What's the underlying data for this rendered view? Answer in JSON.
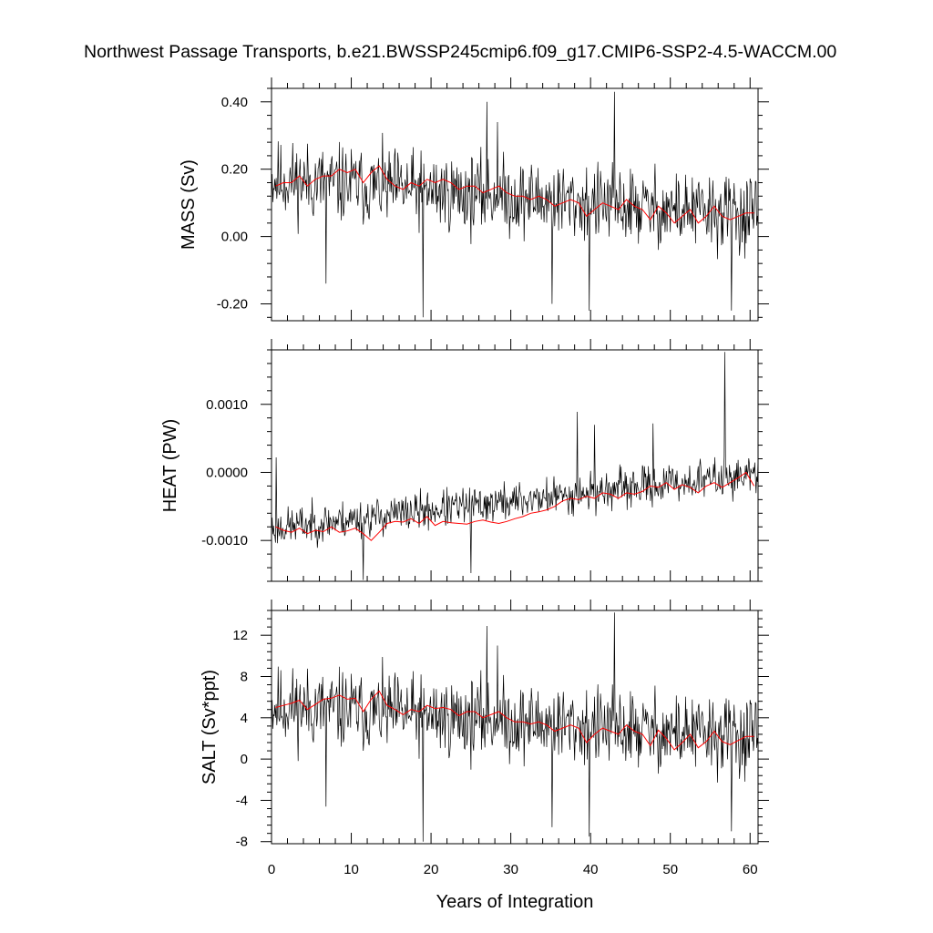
{
  "title": "Northwest Passage Transports, b.e21.BWSSP245cmip6.f09_g17.CMIP6-SSP2-4.5-WACCM.00",
  "chart_data": [
    {
      "type": "line",
      "ylabel": "MASS (Sv)",
      "xlabel": "",
      "xlim": [
        0,
        61
      ],
      "ylim": [
        -0.25,
        0.44
      ],
      "yticks": [
        0.4,
        0.2,
        0.0,
        -0.2
      ],
      "ytick_labels": [
        "0.40",
        "0.20",
        "0.00",
        "-0.20"
      ],
      "monthly": {
        "color": "#000000",
        "mean_start": 0.17,
        "mean_end": 0.06,
        "spread": 0.09,
        "seed": 11,
        "spikes": [
          [
            19.0,
            -0.24
          ],
          [
            43.0,
            0.43
          ],
          [
            27.0,
            0.4
          ],
          [
            28.3,
            0.34
          ],
          [
            39.8,
            -0.22
          ],
          [
            57.7,
            -0.22
          ],
          [
            35.2,
            -0.2
          ],
          [
            6.8,
            -0.14
          ]
        ]
      },
      "annual_mean": {
        "color": "#ff0000",
        "x": [
          0.5,
          1.5,
          2.5,
          3.5,
          4.5,
          5.5,
          6.5,
          7.5,
          8.5,
          9.5,
          10.5,
          11.5,
          12.5,
          13.5,
          14.5,
          15.5,
          16.5,
          17.5,
          18.5,
          19.5,
          20.5,
          21.5,
          22.5,
          23.5,
          24.5,
          25.5,
          26.5,
          27.5,
          28.5,
          29.5,
          30.5,
          31.5,
          32.5,
          33.5,
          34.5,
          35.5,
          36.5,
          37.5,
          38.5,
          39.5,
          40.5,
          41.5,
          42.5,
          43.5,
          44.5,
          45.5,
          46.5,
          47.5,
          48.5,
          49.5,
          50.5,
          51.5,
          52.5,
          53.5,
          54.5,
          55.5,
          56.5,
          57.5,
          58.5,
          59.5,
          60.5
        ],
        "y": [
          0.15,
          0.16,
          0.16,
          0.18,
          0.15,
          0.17,
          0.18,
          0.18,
          0.2,
          0.19,
          0.2,
          0.16,
          0.19,
          0.21,
          0.17,
          0.15,
          0.14,
          0.16,
          0.15,
          0.17,
          0.16,
          0.17,
          0.16,
          0.14,
          0.15,
          0.15,
          0.13,
          0.14,
          0.15,
          0.13,
          0.12,
          0.12,
          0.11,
          0.12,
          0.11,
          0.09,
          0.1,
          0.11,
          0.1,
          0.06,
          0.08,
          0.1,
          0.09,
          0.08,
          0.11,
          0.09,
          0.08,
          0.05,
          0.09,
          0.07,
          0.04,
          0.06,
          0.08,
          0.04,
          0.06,
          0.09,
          0.06,
          0.05,
          0.06,
          0.07,
          0.07
        ]
      }
    },
    {
      "type": "line",
      "ylabel": "HEAT (PW)",
      "xlabel": "",
      "xlim": [
        0,
        61
      ],
      "ylim": [
        -0.0016,
        0.0018
      ],
      "yticks": [
        0.001,
        0.0,
        -0.001
      ],
      "ytick_labels": [
        "0.0010",
        "0.0000",
        "-0.0010"
      ],
      "monthly": {
        "color": "#000000",
        "mean_start": -0.00082,
        "mean_end": -2e-05,
        "spread": 0.00022,
        "seed": 23,
        "spikes": [
          [
            56.8,
            0.00177
          ],
          [
            38.3,
            0.00089
          ],
          [
            40.5,
            0.0007
          ],
          [
            47.8,
            0.00072
          ],
          [
            0.6,
            0.00022
          ],
          [
            11.5,
            -0.00158
          ],
          [
            25.0,
            -0.00148
          ]
        ]
      },
      "annual_mean": {
        "color": "#ff0000",
        "x": [
          0.5,
          1.5,
          2.5,
          3.5,
          4.5,
          5.5,
          6.5,
          7.5,
          8.5,
          9.5,
          10.5,
          11.5,
          12.5,
          13.5,
          14.5,
          15.5,
          16.5,
          17.5,
          18.5,
          19.5,
          20.5,
          21.5,
          22.5,
          23.5,
          24.5,
          25.5,
          26.5,
          27.5,
          28.5,
          29.5,
          30.5,
          31.5,
          32.5,
          33.5,
          34.5,
          35.5,
          36.5,
          37.5,
          38.5,
          39.5,
          40.5,
          41.5,
          42.5,
          43.5,
          44.5,
          45.5,
          46.5,
          47.5,
          48.5,
          49.5,
          50.5,
          51.5,
          52.5,
          53.5,
          54.5,
          55.5,
          56.5,
          57.5,
          58.5,
          59.5,
          60.5
        ],
        "y": [
          -0.0008,
          -0.00085,
          -0.00088,
          -0.00082,
          -0.0009,
          -0.00085,
          -0.00087,
          -0.0008,
          -0.00088,
          -0.00086,
          -0.00082,
          -0.0009,
          -0.001,
          -0.00088,
          -0.00075,
          -0.00072,
          -0.00073,
          -0.00068,
          -0.00075,
          -0.00065,
          -0.00078,
          -0.00072,
          -0.00074,
          -0.00075,
          -0.00076,
          -0.00072,
          -0.0007,
          -0.00073,
          -0.00075,
          -0.00072,
          -0.00068,
          -0.00065,
          -0.0006,
          -0.00058,
          -0.00055,
          -0.0005,
          -0.00042,
          -0.00038,
          -0.0004,
          -0.00035,
          -0.00038,
          -0.0003,
          -0.00032,
          -0.00038,
          -0.0003,
          -0.00032,
          -0.00028,
          -0.0002,
          -0.00022,
          -0.00015,
          -0.00025,
          -0.00018,
          -0.00022,
          -0.0003,
          -0.0002,
          -0.00015,
          -0.00022,
          -0.00015,
          -8e-05,
          0.0,
          -0.0002
        ]
      }
    },
    {
      "type": "line",
      "ylabel": "SALT (Sv*ppt)",
      "xlabel": "Years of Integration",
      "xlim": [
        0,
        61
      ],
      "ylim": [
        -8.2,
        14.4
      ],
      "xticks": [
        0,
        10,
        20,
        30,
        40,
        50,
        60
      ],
      "xtick_labels": [
        "0",
        "10",
        "20",
        "30",
        "40",
        "50",
        "60"
      ],
      "yticks": [
        12,
        8,
        4,
        0,
        -4,
        -8
      ],
      "ytick_labels": [
        "12",
        "8",
        "4",
        "0",
        "-4",
        "-8"
      ],
      "monthly": {
        "color": "#000000",
        "mean_start": 5.2,
        "mean_end": 2.0,
        "spread": 3.0,
        "seed": 11,
        "spikes": [
          [
            19.0,
            -8.0
          ],
          [
            43.0,
            14.2
          ],
          [
            27.0,
            12.9
          ],
          [
            28.3,
            11.0
          ],
          [
            39.8,
            -7.5
          ],
          [
            57.7,
            -7.0
          ],
          [
            35.2,
            -6.6
          ],
          [
            6.8,
            -4.6
          ]
        ]
      },
      "annual_mean": {
        "color": "#ff0000",
        "x": [
          0.5,
          1.5,
          2.5,
          3.5,
          4.5,
          5.5,
          6.5,
          7.5,
          8.5,
          9.5,
          10.5,
          11.5,
          12.5,
          13.5,
          14.5,
          15.5,
          16.5,
          17.5,
          18.5,
          19.5,
          20.5,
          21.5,
          22.5,
          23.5,
          24.5,
          25.5,
          26.5,
          27.5,
          28.5,
          29.5,
          30.5,
          31.5,
          32.5,
          33.5,
          34.5,
          35.5,
          36.5,
          37.5,
          38.5,
          39.5,
          40.5,
          41.5,
          42.5,
          43.5,
          44.5,
          45.5,
          46.5,
          47.5,
          48.5,
          49.5,
          50.5,
          51.5,
          52.5,
          53.5,
          54.5,
          55.5,
          56.5,
          57.5,
          58.5,
          59.5,
          60.5
        ],
        "y": [
          5.0,
          5.2,
          5.4,
          5.7,
          4.8,
          5.3,
          5.8,
          5.9,
          6.2,
          5.8,
          5.9,
          4.6,
          5.8,
          6.6,
          5.2,
          4.8,
          4.3,
          4.8,
          4.6,
          5.2,
          4.9,
          5.0,
          4.8,
          4.2,
          4.6,
          4.6,
          4.0,
          4.3,
          4.6,
          4.0,
          3.6,
          3.6,
          3.4,
          3.6,
          3.3,
          2.7,
          3.0,
          3.3,
          3.0,
          1.6,
          2.4,
          3.0,
          2.7,
          2.4,
          3.3,
          2.7,
          2.4,
          1.3,
          2.8,
          2.0,
          0.9,
          1.6,
          2.4,
          1.1,
          1.7,
          2.7,
          1.7,
          1.4,
          1.8,
          2.2,
          2.2
        ]
      }
    }
  ]
}
